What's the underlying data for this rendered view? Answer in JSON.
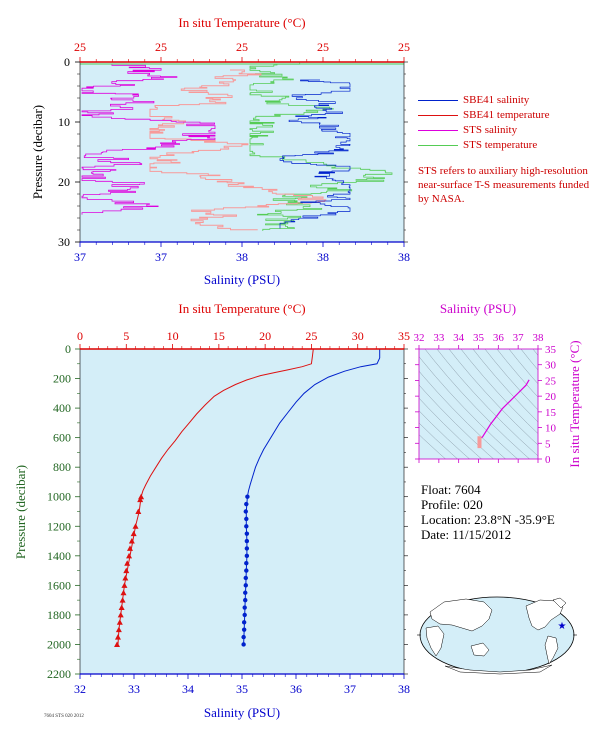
{
  "colors": {
    "plot_bg": "#d4eef8",
    "axis_red": "#dd0000",
    "axis_blue": "#0000cc",
    "axis_magenta": "#cc00cc",
    "axis_green": "#226622",
    "sbe_salinity": "#0022cc",
    "sbe_temperature": "#dd1111",
    "sts_salinity": "#dd00dd",
    "sts_temperature": "#55cc55",
    "sts_temperature_pink": "#f79a9a"
  },
  "top_plot": {
    "title": "In situ Temperature (°C)",
    "temp_ticks": [
      "25",
      "25",
      "25",
      "25",
      "25"
    ],
    "ylabel": "Pressure (decibar)",
    "y_ticks": [
      "0",
      "10",
      "20",
      "30"
    ],
    "xlabel": "Salinity (PSU)",
    "sal_ticks": [
      "37",
      "37",
      "38",
      "38",
      "38"
    ]
  },
  "legend": [
    {
      "label": "SBE41 salinity",
      "color": "#0022cc"
    },
    {
      "label": "SBE41 temperature",
      "color": "#dd1111"
    },
    {
      "label": "STS salinity",
      "color": "#dd00dd"
    },
    {
      "label": "STS temperature",
      "color": "#55cc55"
    }
  ],
  "note": "STS refers to auxiliary high-resolution near-surface T-S measurements funded by NASA.",
  "main_plot": {
    "title": "In situ Temperature (°C)",
    "temp_ticks": [
      "0",
      "5",
      "10",
      "15",
      "20",
      "25",
      "30",
      "35"
    ],
    "ylabel": "Pressure (decibar)",
    "y_ticks": [
      "0",
      "200",
      "400",
      "600",
      "800",
      "1000",
      "1200",
      "1400",
      "1600",
      "1800",
      "2000",
      "2200"
    ],
    "xlabel": "Salinity (PSU)",
    "sal_ticks": [
      "32",
      "33",
      "34",
      "35",
      "36",
      "37",
      "38"
    ]
  },
  "ts_plot": {
    "title": "Salinity (PSU)",
    "sal_ticks": [
      "32",
      "33",
      "34",
      "35",
      "36",
      "37",
      "38"
    ],
    "ylabel": "In situ Temperature (°C)",
    "t_ticks": [
      "0",
      "5",
      "10",
      "15",
      "20",
      "25",
      "30",
      "35"
    ]
  },
  "info": {
    "float": "Float:  7604",
    "profile": "Profile:  020",
    "location": "Location:  23.8°N  -35.9°E",
    "date": "Date:  11/15/2012"
  },
  "footer_text": "7604 STS 020 2012",
  "chart_data": [
    {
      "type": "line",
      "name": "main-profile",
      "series": [
        {
          "name": "SBE41 temperature",
          "x_unit": "In situ Temperature (°C)",
          "points": [
            [
              25.2,
              0
            ],
            [
              25.1,
              50
            ],
            [
              25.0,
              100
            ],
            [
              24.0,
              120
            ],
            [
              22.5,
              140
            ],
            [
              21.0,
              160
            ],
            [
              19.5,
              180
            ],
            [
              18.0,
              210
            ],
            [
              16.8,
              240
            ],
            [
              15.5,
              280
            ],
            [
              14.5,
              320
            ],
            [
              13.5,
              380
            ],
            [
              12.6,
              440
            ],
            [
              11.8,
              500
            ],
            [
              11.0,
              560
            ],
            [
              10.3,
              620
            ],
            [
              9.5,
              680
            ],
            [
              8.8,
              740
            ],
            [
              8.2,
              800
            ],
            [
              7.6,
              860
            ],
            [
              7.1,
              920
            ],
            [
              6.8,
              960
            ],
            [
              6.6,
              1000
            ],
            [
              6.4,
              1100
            ],
            [
              6.0,
              1200
            ],
            [
              5.7,
              1300
            ],
            [
              5.4,
              1400
            ],
            [
              5.1,
              1500
            ],
            [
              4.8,
              1600
            ],
            [
              4.6,
              1700
            ],
            [
              4.4,
              1800
            ],
            [
              4.2,
              1900
            ],
            [
              4.1,
              2000
            ]
          ],
          "marked_points": [
            [
              6.6,
              1000
            ],
            [
              6.5,
              1020
            ],
            [
              6.3,
              1100
            ],
            [
              6.0,
              1200
            ],
            [
              5.8,
              1250
            ],
            [
              5.6,
              1300
            ],
            [
              5.4,
              1350
            ],
            [
              5.3,
              1400
            ],
            [
              5.1,
              1450
            ],
            [
              5.0,
              1500
            ],
            [
              4.9,
              1550
            ],
            [
              4.8,
              1600
            ],
            [
              4.7,
              1650
            ],
            [
              4.6,
              1700
            ],
            [
              4.5,
              1750
            ],
            [
              4.4,
              1800
            ],
            [
              4.3,
              1850
            ],
            [
              4.2,
              1900
            ],
            [
              4.1,
              1950
            ],
            [
              4.0,
              2000
            ]
          ]
        },
        {
          "name": "SBE41 salinity",
          "x_unit": "Salinity (PSU)",
          "points": [
            [
              37.55,
              0
            ],
            [
              37.55,
              60
            ],
            [
              37.5,
              100
            ],
            [
              37.2,
              120
            ],
            [
              36.9,
              150
            ],
            [
              36.6,
              190
            ],
            [
              36.35,
              240
            ],
            [
              36.15,
              300
            ],
            [
              36.0,
              360
            ],
            [
              35.85,
              430
            ],
            [
              35.7,
              500
            ],
            [
              35.6,
              560
            ],
            [
              35.5,
              620
            ],
            [
              35.4,
              680
            ],
            [
              35.32,
              740
            ],
            [
              35.25,
              800
            ],
            [
              35.2,
              860
            ],
            [
              35.15,
              920
            ],
            [
              35.12,
              960
            ],
            [
              35.1,
              1000
            ],
            [
              35.08,
              1100
            ],
            [
              35.08,
              1200
            ],
            [
              35.09,
              1300
            ],
            [
              35.09,
              1400
            ],
            [
              35.08,
              1500
            ],
            [
              35.07,
              1600
            ],
            [
              35.06,
              1700
            ],
            [
              35.05,
              1800
            ],
            [
              35.04,
              1900
            ],
            [
              35.03,
              2000
            ]
          ],
          "marked_points": [
            [
              35.1,
              1000
            ],
            [
              35.08,
              1050
            ],
            [
              35.07,
              1100
            ],
            [
              35.08,
              1150
            ],
            [
              35.08,
              1200
            ],
            [
              35.09,
              1250
            ],
            [
              35.09,
              1300
            ],
            [
              35.09,
              1350
            ],
            [
              35.09,
              1400
            ],
            [
              35.08,
              1450
            ],
            [
              35.08,
              1500
            ],
            [
              35.07,
              1550
            ],
            [
              35.07,
              1600
            ],
            [
              35.06,
              1650
            ],
            [
              35.06,
              1700
            ],
            [
              35.05,
              1750
            ],
            [
              35.05,
              1800
            ],
            [
              35.04,
              1850
            ],
            [
              35.04,
              1900
            ],
            [
              35.03,
              1950
            ],
            [
              35.03,
              2000
            ]
          ]
        }
      ],
      "xlim_temperature": [
        0,
        35
      ],
      "xlim_salinity": [
        32,
        38
      ],
      "ylim_pressure": [
        0,
        2200
      ],
      "y_reversed": true,
      "grid": false
    },
    {
      "type": "line",
      "name": "ts-diagram",
      "series": [
        {
          "name": "T-S curve",
          "points": [
            [
              37.55,
              25.2
            ],
            [
              37.4,
              23.5
            ],
            [
              37.0,
              21.0
            ],
            [
              36.6,
              18.5
            ],
            [
              36.2,
              16.0
            ],
            [
              35.9,
              13.5
            ],
            [
              35.6,
              11.0
            ],
            [
              35.35,
              8.5
            ],
            [
              35.2,
              7.0
            ],
            [
              35.1,
              6.6
            ],
            [
              35.09,
              6.0
            ],
            [
              35.08,
              5.4
            ],
            [
              35.06,
              4.8
            ],
            [
              35.03,
              4.1
            ]
          ]
        }
      ],
      "xlim": [
        32,
        38
      ],
      "ylim": [
        0,
        35
      ],
      "density_contours": true
    },
    {
      "type": "line",
      "name": "near-surface-detail",
      "xlim_salinity": [
        37,
        38
      ],
      "ylim_pressure": [
        0,
        30
      ],
      "y_reversed": true,
      "series_names": [
        "SBE41 salinity",
        "SBE41 temperature",
        "STS salinity",
        "STS temperature"
      ]
    }
  ]
}
